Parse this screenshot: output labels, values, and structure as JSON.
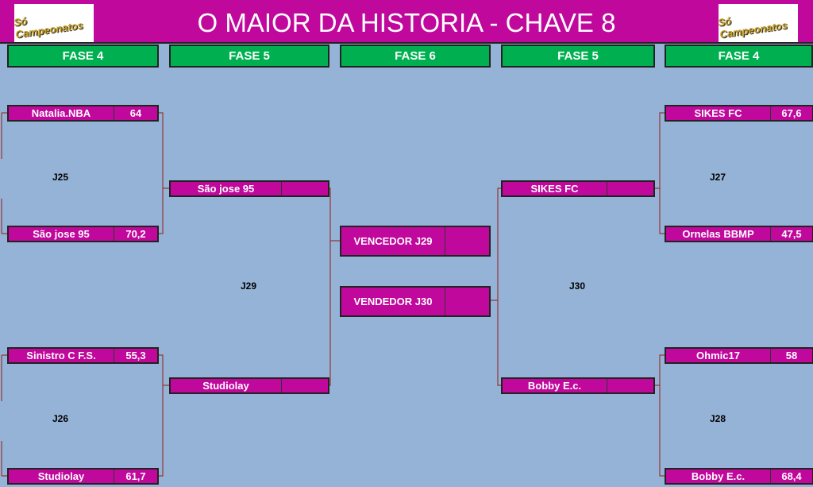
{
  "header": {
    "title": "O MAIOR DA HISTORIA - CHAVE 8",
    "logo_text": "Só Campeonatos"
  },
  "phases": [
    "FASE 4",
    "FASE 5",
    "FASE 6",
    "FASE 5",
    "FASE 4"
  ],
  "left_f4": [
    {
      "name": "Natalia.NBA",
      "score": "64"
    },
    {
      "name": "São jose 95",
      "score": "70,2"
    },
    {
      "name": "Sinistro C F.S.",
      "score": "55,3"
    },
    {
      "name": "Studiolay",
      "score": "61,7"
    }
  ],
  "left_f5": [
    {
      "name": "São jose 95",
      "score": ""
    },
    {
      "name": "Studiolay",
      "score": ""
    }
  ],
  "final": [
    {
      "name": "VENCEDOR J29",
      "score": ""
    },
    {
      "name": "VENDEDOR J30",
      "score": ""
    }
  ],
  "right_f5": [
    {
      "name": "SIKES FC",
      "score": ""
    },
    {
      "name": "Bobby E.c.",
      "score": ""
    }
  ],
  "right_f4": [
    {
      "name": "SIKES FC",
      "score": "67,6"
    },
    {
      "name": "Ornelas BBMP",
      "score": "47,5"
    },
    {
      "name": "Ohmic17",
      "score": "58"
    },
    {
      "name": "Bobby E.c.",
      "score": "68,4"
    }
  ],
  "games": {
    "j25": "J25",
    "j26": "J26",
    "j29": "J29",
    "j30": "J30",
    "j27": "J27",
    "j28": "J28"
  },
  "colors": {
    "background": "#95b3d7",
    "magenta": "#c0089c",
    "green": "#00b050",
    "bracket": "#953735"
  }
}
